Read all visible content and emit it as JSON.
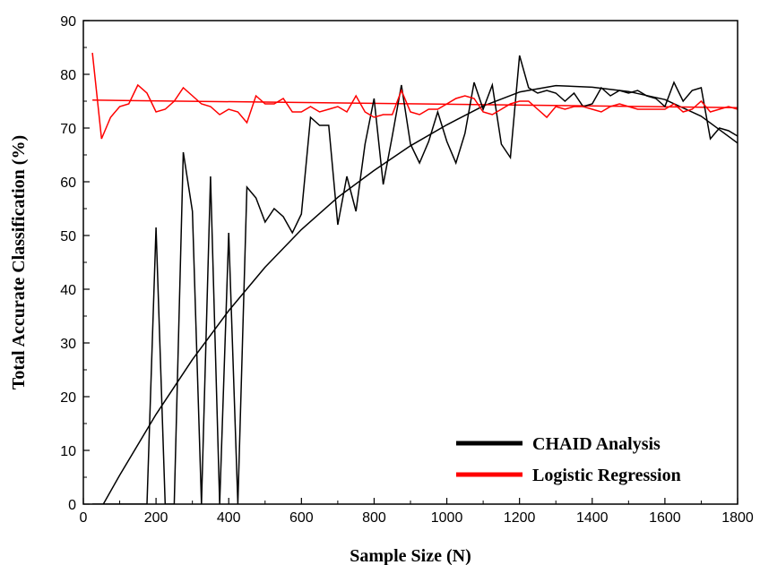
{
  "chart_data": {
    "type": "line",
    "xlabel": "Sample Size (N)",
    "ylabel": "Total Accurate Classification (%)",
    "xlim": [
      0,
      1800
    ],
    "ylim": [
      0,
      90
    ],
    "x_ticks": [
      0,
      200,
      400,
      600,
      800,
      1000,
      1200,
      1400,
      1600,
      1800
    ],
    "y_ticks": [
      0,
      10,
      20,
      30,
      40,
      50,
      60,
      70,
      80,
      90
    ],
    "grid": false,
    "legend_position": "bottom-right",
    "series": [
      {
        "name": "CHAID Analysis",
        "color": "#000000",
        "x": [
          25,
          50,
          75,
          100,
          125,
          150,
          175,
          200,
          225,
          250,
          275,
          300,
          325,
          350,
          375,
          400,
          425,
          450,
          475,
          500,
          525,
          550,
          575,
          600,
          625,
          650,
          675,
          700,
          725,
          750,
          775,
          800,
          825,
          850,
          875,
          900,
          925,
          950,
          975,
          1000,
          1025,
          1050,
          1075,
          1100,
          1125,
          1150,
          1175,
          1200,
          1225,
          1250,
          1275,
          1300,
          1325,
          1350,
          1375,
          1400,
          1425,
          1450,
          1475,
          1500,
          1525,
          1550,
          1575,
          1600,
          1625,
          1650,
          1675,
          1700,
          1725,
          1750,
          1775,
          1800
        ],
        "values": [
          0,
          0,
          0,
          0,
          0,
          0,
          0,
          51.5,
          0,
          0,
          65.5,
          54.5,
          0,
          61,
          0,
          50.5,
          0,
          59,
          57,
          52.5,
          55,
          53.5,
          50.5,
          54,
          72,
          70.5,
          70.5,
          52,
          61,
          54.5,
          67,
          75.5,
          59.5,
          68.5,
          78,
          67,
          63.5,
          67.5,
          73,
          67.5,
          63.5,
          69,
          78.5,
          73.5,
          78,
          67,
          64.5,
          83.5,
          77.5,
          76.5,
          77,
          76.5,
          75,
          76.5,
          74,
          74.5,
          77.5,
          76,
          77,
          76.5,
          77,
          76,
          75.5,
          74,
          78.5,
          75,
          77,
          77.5,
          68,
          70,
          69.5,
          68.5
        ]
      },
      {
        "name": "Logistic Regression",
        "color": "#ff0000",
        "x": [
          25,
          50,
          75,
          100,
          125,
          150,
          175,
          200,
          225,
          250,
          275,
          300,
          325,
          350,
          375,
          400,
          425,
          450,
          475,
          500,
          525,
          550,
          575,
          600,
          625,
          650,
          675,
          700,
          725,
          750,
          775,
          800,
          825,
          850,
          875,
          900,
          925,
          950,
          975,
          1000,
          1025,
          1050,
          1075,
          1100,
          1125,
          1150,
          1175,
          1200,
          1225,
          1250,
          1275,
          1300,
          1325,
          1350,
          1375,
          1400,
          1425,
          1450,
          1475,
          1500,
          1525,
          1550,
          1575,
          1600,
          1625,
          1650,
          1675,
          1700,
          1725,
          1750,
          1775,
          1800
        ],
        "values": [
          84,
          68,
          72,
          74,
          74.5,
          78,
          76.5,
          73,
          73.5,
          75,
          77.5,
          76,
          74.5,
          74,
          72.5,
          73.5,
          73,
          71,
          76,
          74.5,
          74.5,
          75.5,
          73,
          73,
          74,
          73,
          73.5,
          74,
          73,
          76,
          73,
          72,
          72.5,
          72.5,
          77,
          73,
          72.5,
          73.5,
          73.5,
          74.5,
          75.5,
          76,
          75.5,
          73,
          72.5,
          73.5,
          74.5,
          75,
          75,
          73.5,
          72,
          74,
          73.5,
          74,
          74,
          73.5,
          73,
          74,
          74.5,
          74,
          73.5,
          73.5,
          73.5,
          73.5,
          74.5,
          73,
          73.5,
          75,
          73,
          73.5,
          74,
          73.5
        ]
      }
    ],
    "fits": [
      {
        "series": "CHAID Analysis",
        "kind": "quadratic",
        "color": "#000000",
        "x": [
          55,
          100,
          200,
          300,
          400,
          500,
          600,
          700,
          800,
          900,
          1000,
          1100,
          1200,
          1300,
          1400,
          1500,
          1600,
          1700,
          1800
        ],
        "values": [
          0,
          5.4,
          16.7,
          26.9,
          36,
          44.1,
          51.1,
          57.1,
          62.1,
          66.7,
          70.6,
          74.1,
          76.7,
          77.9,
          77.6,
          76.8,
          75.3,
          72.2,
          67.2
        ]
      },
      {
        "series": "Logistic Regression",
        "kind": "linear",
        "color": "#ff0000",
        "x": [
          25,
          1800
        ],
        "values": [
          75.2,
          73.8
        ]
      }
    ]
  }
}
